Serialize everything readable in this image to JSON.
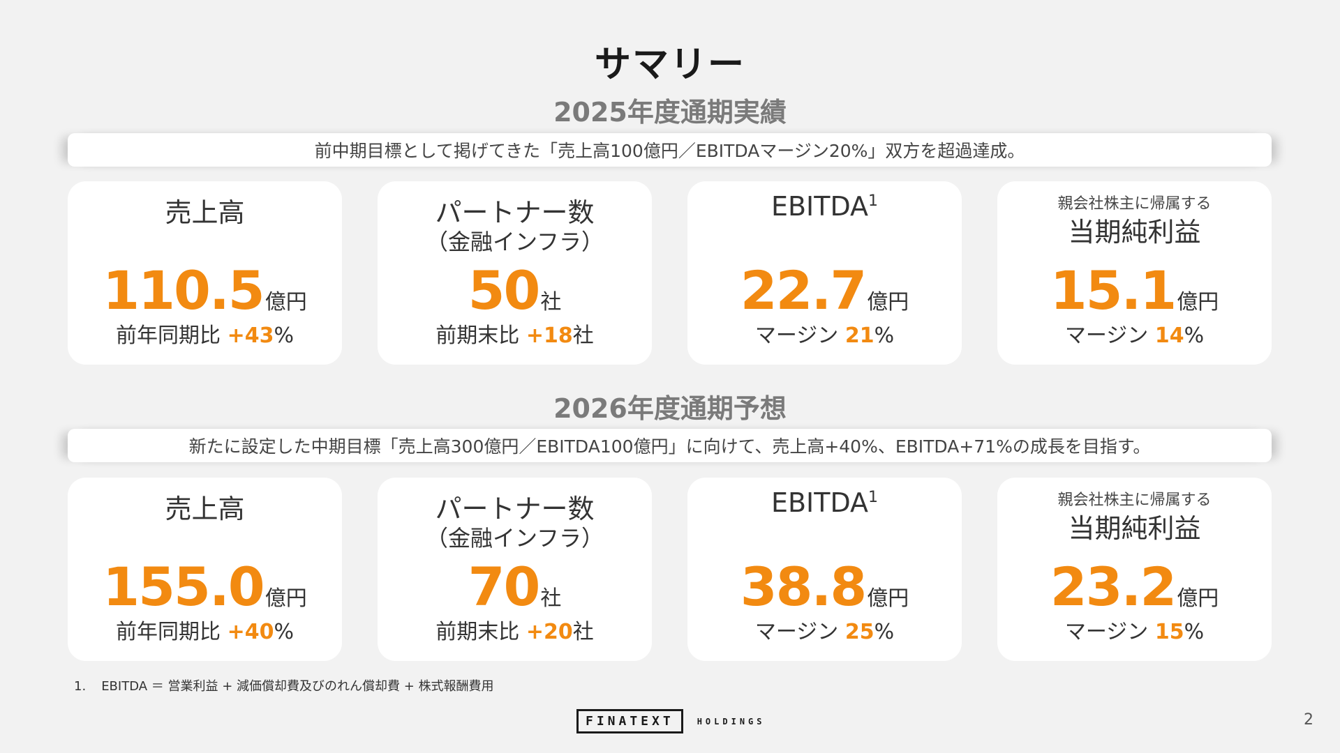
{
  "title": "サマリー",
  "sections": [
    {
      "heading": "2025年度通期実績",
      "banner": "前中期目標として掲げてきた「売上高100億円／EBITDAマージン20%」双方を超過達成。",
      "cards": [
        {
          "label": "売上高",
          "value": "110.5",
          "unit": "億円",
          "sub_prefix": "前年同期比 ",
          "sub_accent": "+43",
          "sub_suffix": "%"
        },
        {
          "label": "パートナー数",
          "label_sub": "（金融インフラ）",
          "value": "50",
          "unit": "社",
          "sub_prefix": "前期末比 ",
          "sub_accent": "+18",
          "sub_suffix": "社"
        },
        {
          "label": "EBITDA",
          "label_sup": "1",
          "value": "22.7",
          "unit": "億円",
          "sub_prefix": "マージン ",
          "sub_accent": "21",
          "sub_suffix": "%"
        },
        {
          "label_small": "親会社株主に帰属する",
          "label": "当期純利益",
          "value": "15.1",
          "unit": "億円",
          "sub_prefix": "マージン ",
          "sub_accent": "14",
          "sub_suffix": "%"
        }
      ]
    },
    {
      "heading": "2026年度通期予想",
      "banner": "新たに設定した中期目標「売上高300億円／EBITDA100億円」に向けて、売上高+40%、EBITDA+71%の成長を目指す。",
      "cards": [
        {
          "label": "売上高",
          "value": "155.0",
          "unit": "億円",
          "sub_prefix": "前年同期比 ",
          "sub_accent": "+40",
          "sub_suffix": "%"
        },
        {
          "label": "パートナー数",
          "label_sub": "（金融インフラ）",
          "value": "70",
          "unit": "社",
          "sub_prefix": "前期末比 ",
          "sub_accent": "+20",
          "sub_suffix": "社"
        },
        {
          "label": "EBITDA",
          "label_sup": "1",
          "value": "38.8",
          "unit": "億円",
          "sub_prefix": "マージン ",
          "sub_accent": "25",
          "sub_suffix": "%"
        },
        {
          "label_small": "親会社株主に帰属する",
          "label": "当期純利益",
          "value": "23.2",
          "unit": "億円",
          "sub_prefix": "マージン ",
          "sub_accent": "15",
          "sub_suffix": "%"
        }
      ]
    }
  ],
  "footnote": {
    "num": "1.",
    "text": "EBITDA ＝ 営業利益 + 減価償却費及びのれん償却費 + 株式報酬費用"
  },
  "logo": {
    "brand": "FINATEXT",
    "suffix": "HOLDINGS"
  },
  "page_number": "2",
  "colors": {
    "accent": "#f28a11",
    "background": "#f2f2f2",
    "card": "#ffffff"
  }
}
